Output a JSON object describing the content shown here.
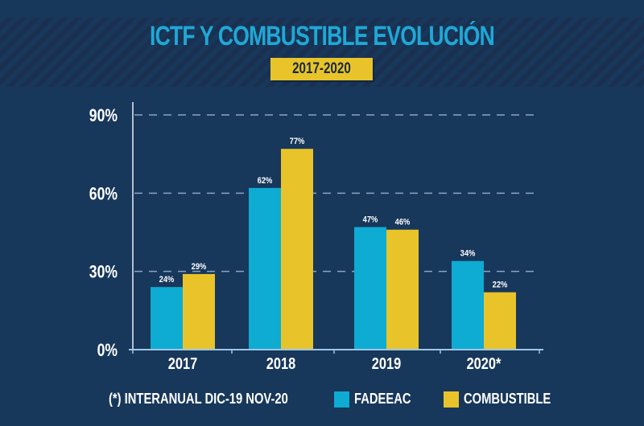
{
  "header": {
    "title": "ICTF Y COMBUSTIBLE EVOLUCIÓN",
    "subtitle": "2017-2020"
  },
  "colors": {
    "background": "#17375b",
    "fadeeac": "#0eabd3",
    "combustible": "#e8c42a",
    "title": "#1fa8d6",
    "grid": "#8ea4c0"
  },
  "footer": {
    "note": "(*) INTERANUAL DIC-19 NOV-20"
  },
  "chart_data": {
    "type": "bar",
    "title": "ICTF Y COMBUSTIBLE EVOLUCIÓN",
    "subtitle": "2017-2020",
    "categories": [
      "2017",
      "2018",
      "2019",
      "2020*"
    ],
    "series": [
      {
        "name": "FADEEAC",
        "values": [
          24,
          62,
          47,
          34
        ],
        "labels": [
          "24%",
          "62%",
          "47%",
          "34%"
        ]
      },
      {
        "name": "COMBUSTIBLE",
        "values": [
          29,
          77,
          46,
          22
        ],
        "labels": [
          "29%",
          "77%",
          "46%",
          "22%"
        ]
      }
    ],
    "xlabel": "",
    "ylabel": "",
    "ylim": [
      0,
      90
    ],
    "yticks": [
      0,
      30,
      60,
      90
    ],
    "ytick_labels": [
      "0%",
      "30%",
      "60%",
      "90%"
    ],
    "grid": true,
    "legend": "bottom",
    "annotation": "(*) INTERANUAL DIC-19 NOV-20"
  }
}
